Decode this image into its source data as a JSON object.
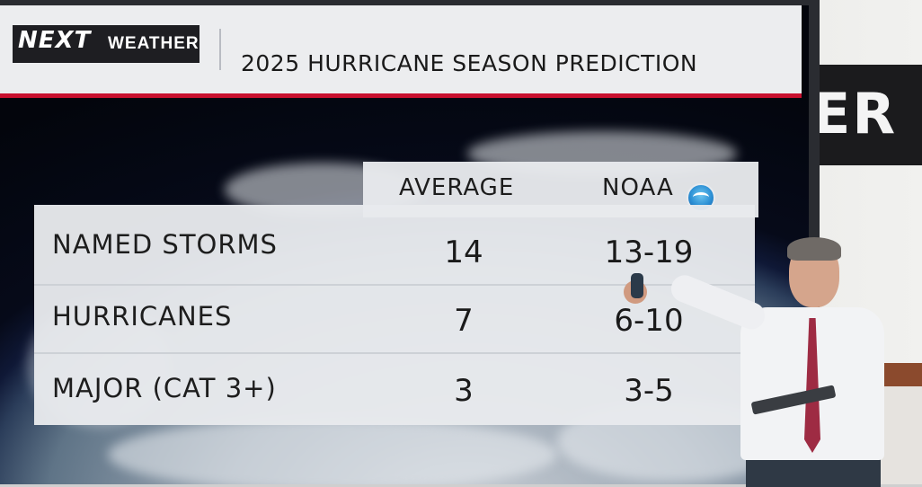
{
  "header": {
    "logo_next": "NEXT",
    "logo_weather": "WEATHER",
    "title": "2025 HURRICANE SEASON PREDICTION"
  },
  "studio": {
    "backdrop_text": "ER"
  },
  "table": {
    "columns": [
      "AVERAGE",
      "NOAA"
    ],
    "noaa_logo_icon": "noaa-logo",
    "rows": [
      {
        "label": "NAMED STORMS",
        "average": "14",
        "noaa": "13-19"
      },
      {
        "label": "HURRICANES",
        "average": "7",
        "noaa": "6-10"
      },
      {
        "label": "MAJOR (CAT 3+)",
        "average": "3",
        "noaa": "3-5"
      }
    ]
  },
  "colors": {
    "accent_red": "#c8102e",
    "panel": "#e8eaed",
    "text": "#1d1d1d"
  }
}
